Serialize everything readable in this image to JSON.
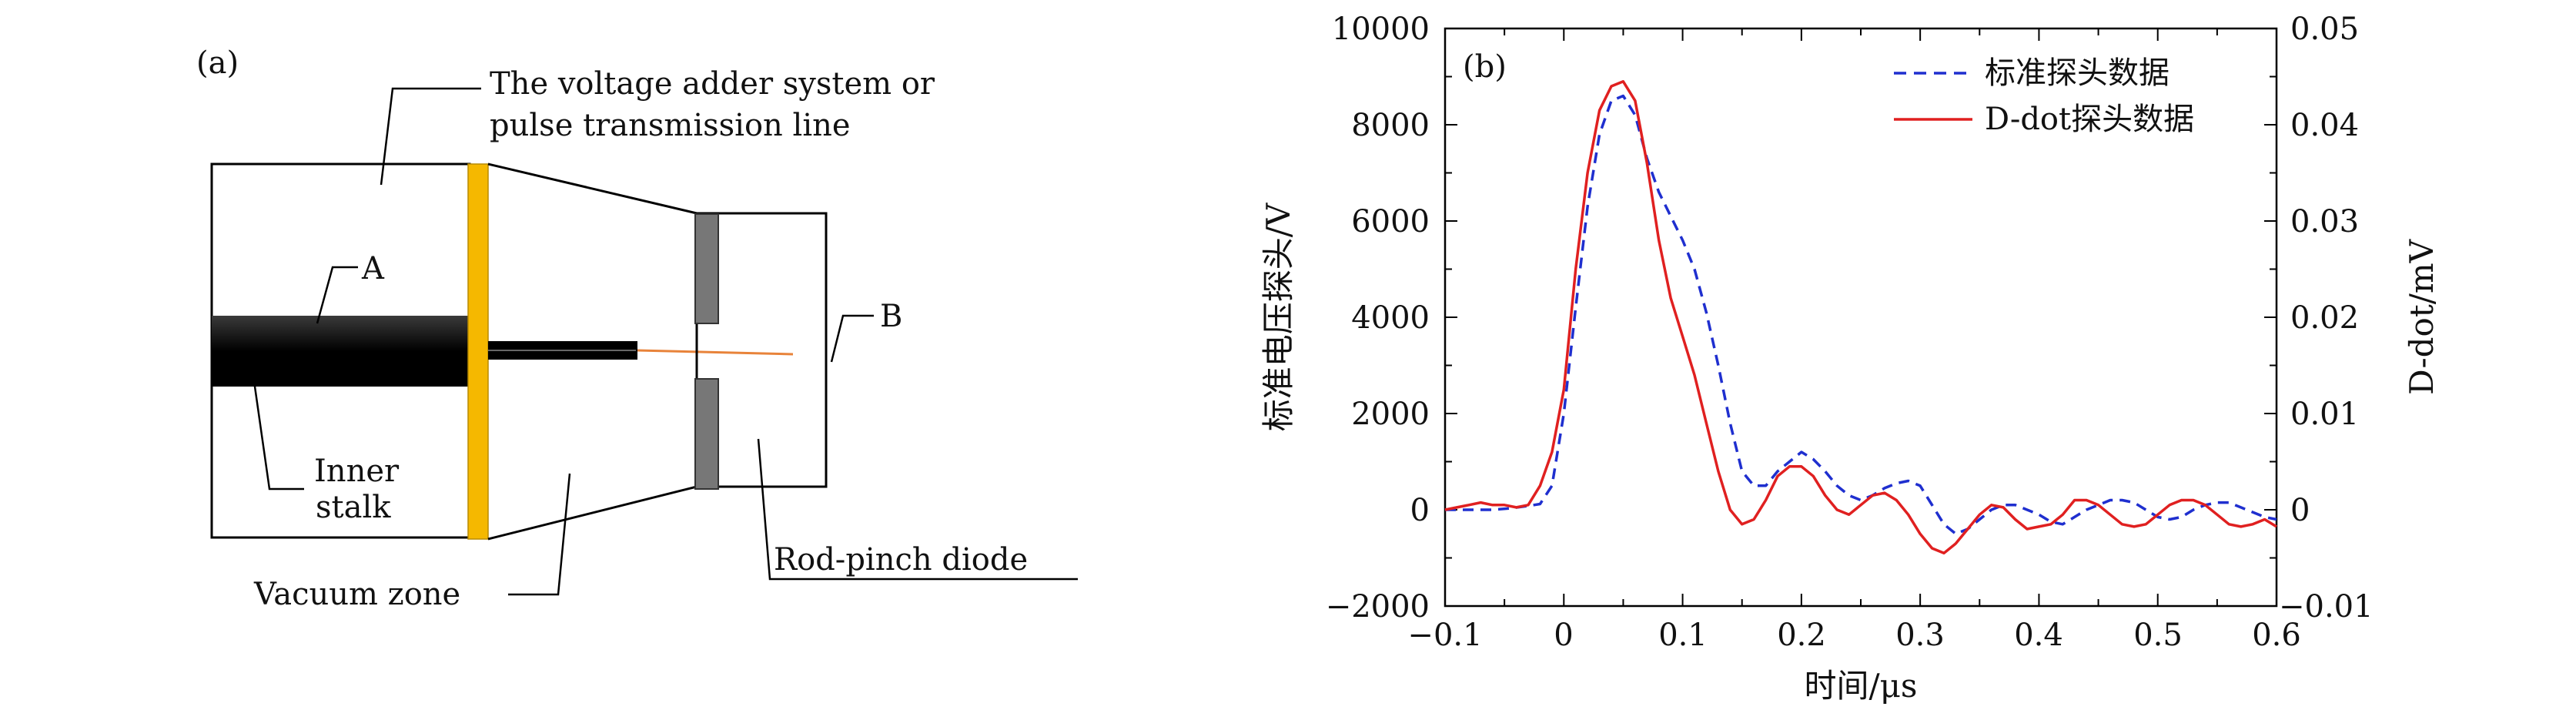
{
  "panel_a": {
    "label": "(a)",
    "callout_system_line1": "The voltage adder system or",
    "callout_system_line2": "pulse transmission line",
    "label_A": "A",
    "label_B": "B",
    "inner_stalk_line1": "Inner",
    "inner_stalk_line2": "stalk",
    "vacuum_zone": "Vacuum zone",
    "rod_pinch_diode": "Rod-pinch diode",
    "colors": {
      "insulator": "#F5B800",
      "anode_rod": "#E8833A",
      "cathode_plate": "#777777"
    }
  },
  "panel_b": {
    "label": "(b)",
    "xlabel": "时间/μs",
    "ylabel_left": "标准电压探头/V",
    "ylabel_right": "D-dot/mV",
    "left_ticks": [
      "10000",
      "8000",
      "6000",
      "4000",
      "2000",
      "0",
      "−2000"
    ],
    "right_ticks": [
      "0.05",
      "0.04",
      "0.03",
      "0.02",
      "0.01",
      "0",
      "−0.01"
    ],
    "x_ticks": [
      "−0.1",
      "0",
      "0.1",
      "0.2",
      "0.3",
      "0.4",
      "0.5",
      "0.6"
    ],
    "legend": [
      {
        "name": "标准探头数据",
        "style": "dashed",
        "color": "#1f2fcf"
      },
      {
        "name": "D-dot探头数据",
        "style": "solid",
        "color": "#e02020"
      }
    ]
  },
  "chart_data": {
    "type": "line",
    "xlim": [
      -0.1,
      0.6
    ],
    "ylim": [
      -2000,
      10000
    ],
    "y2lim": [
      -0.01,
      0.05
    ],
    "xlabel": "时间/μs",
    "ylabel": "标准电压探头/V",
    "y2label": "D-dot/mV",
    "legend_position": "top-right",
    "grid": false,
    "series": [
      {
        "name": "标准探头数据",
        "axis": "left",
        "style": "dashed",
        "color": "#1f2fcf",
        "x": [
          -0.1,
          -0.08,
          -0.06,
          -0.045,
          -0.03,
          -0.02,
          -0.01,
          0.0,
          0.01,
          0.02,
          0.03,
          0.04,
          0.05,
          0.06,
          0.07,
          0.08,
          0.09,
          0.1,
          0.11,
          0.12,
          0.13,
          0.14,
          0.15,
          0.16,
          0.17,
          0.18,
          0.19,
          0.2,
          0.21,
          0.22,
          0.23,
          0.24,
          0.25,
          0.26,
          0.27,
          0.28,
          0.29,
          0.3,
          0.31,
          0.32,
          0.33,
          0.34,
          0.35,
          0.36,
          0.37,
          0.38,
          0.39,
          0.4,
          0.41,
          0.42,
          0.43,
          0.44,
          0.45,
          0.46,
          0.47,
          0.48,
          0.49,
          0.5,
          0.51,
          0.52,
          0.53,
          0.54,
          0.55,
          0.56,
          0.57,
          0.58,
          0.59,
          0.6
        ],
        "y": [
          0,
          0,
          0,
          30,
          80,
          120,
          500,
          2000,
          4200,
          6300,
          7800,
          8500,
          8600,
          8200,
          7300,
          6600,
          6100,
          5600,
          5000,
          4100,
          3000,
          1800,
          800,
          500,
          500,
          800,
          1000,
          1200,
          1050,
          800,
          500,
          300,
          200,
          300,
          450,
          550,
          600,
          500,
          100,
          -300,
          -500,
          -400,
          -200,
          0,
          100,
          100,
          0,
          -100,
          -250,
          -300,
          -150,
          0,
          100,
          200,
          200,
          150,
          0,
          -150,
          -200,
          -150,
          0,
          100,
          150,
          150,
          50,
          -50,
          -150,
          -200
        ]
      },
      {
        "name": "D-dot探头数据",
        "axis": "left",
        "style": "solid",
        "color": "#e02020",
        "x": [
          -0.1,
          -0.09,
          -0.08,
          -0.07,
          -0.06,
          -0.05,
          -0.04,
          -0.03,
          -0.02,
          -0.01,
          0.0,
          0.01,
          0.02,
          0.03,
          0.04,
          0.05,
          0.06,
          0.07,
          0.08,
          0.09,
          0.1,
          0.11,
          0.12,
          0.13,
          0.14,
          0.15,
          0.16,
          0.17,
          0.18,
          0.19,
          0.2,
          0.21,
          0.22,
          0.23,
          0.24,
          0.25,
          0.26,
          0.27,
          0.28,
          0.29,
          0.3,
          0.31,
          0.32,
          0.33,
          0.34,
          0.35,
          0.36,
          0.37,
          0.38,
          0.39,
          0.4,
          0.41,
          0.42,
          0.43,
          0.44,
          0.45,
          0.46,
          0.47,
          0.48,
          0.49,
          0.5,
          0.51,
          0.52,
          0.53,
          0.54,
          0.55,
          0.56,
          0.57,
          0.58,
          0.59,
          0.6
        ],
        "y": [
          0,
          50,
          100,
          150,
          100,
          100,
          50,
          100,
          500,
          1200,
          2500,
          5000,
          7000,
          8300,
          8800,
          8900,
          8500,
          7200,
          5600,
          4400,
          3600,
          2800,
          1800,
          800,
          0,
          -300,
          -200,
          200,
          700,
          900,
          900,
          700,
          300,
          0,
          -100,
          100,
          300,
          350,
          200,
          -100,
          -500,
          -800,
          -900,
          -700,
          -400,
          -100,
          100,
          50,
          -200,
          -400,
          -350,
          -300,
          -100,
          200,
          200,
          100,
          -100,
          -300,
          -350,
          -300,
          -100,
          100,
          200,
          200,
          100,
          -100,
          -300,
          -350,
          -300,
          -200,
          -350
        ]
      }
    ]
  }
}
